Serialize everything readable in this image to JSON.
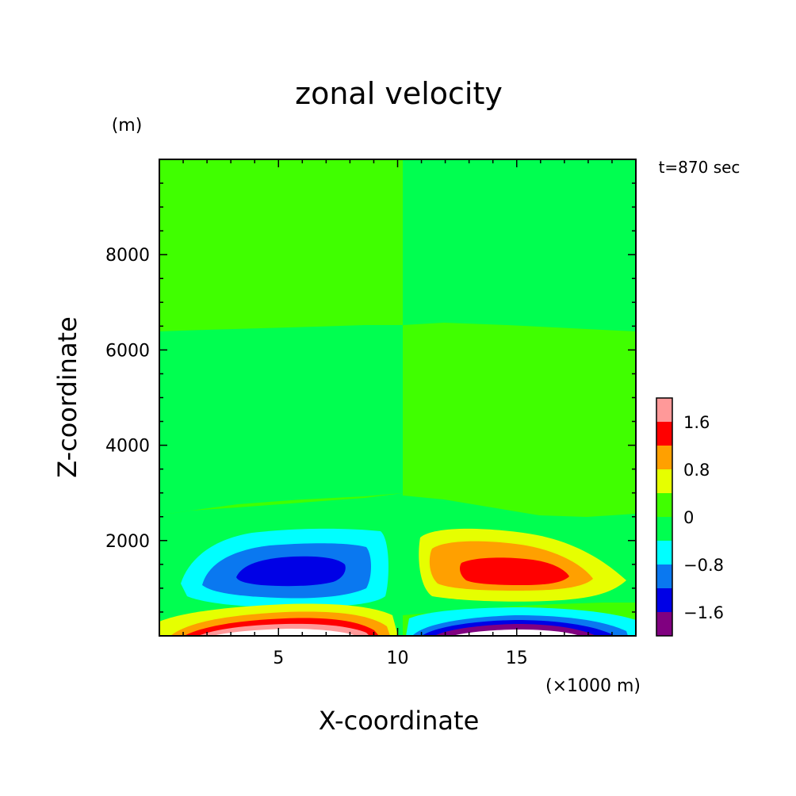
{
  "chart_data": {
    "type": "heatmap",
    "subtype": "filled contour",
    "title": "zonal velocity",
    "xlabel": "X-coordinate",
    "ylabel": "Z-coordinate",
    "x_unit": "(×1000 m)",
    "y_unit": "(m)",
    "annotation": "t=870 sec",
    "xlim": [
      0,
      20
    ],
    "ylim": [
      0,
      10000
    ],
    "xticks": [
      5,
      10,
      15
    ],
    "yticks": [
      2000,
      4000,
      6000,
      8000
    ],
    "xtick_labels": [
      "5",
      "10",
      "15"
    ],
    "ytick_labels": [
      "2000",
      "4000",
      "6000",
      "8000"
    ],
    "colorbar": {
      "levels": [
        -2.0,
        -1.6,
        -1.2,
        -0.8,
        -0.4,
        0,
        0.4,
        0.8,
        1.2,
        1.6,
        2.0
      ],
      "colors": [
        "#800080",
        "#0000e6",
        "#0a78f0",
        "#00ffff",
        "#00ff50",
        "#40ff00",
        "#e6ff00",
        "#ffa000",
        "#ff0000",
        "#ff9999"
      ],
      "tick_labels": [
        "-1.6",
        "-0.8",
        "0",
        "0.8",
        "1.6"
      ]
    },
    "features": [
      {
        "name": "upper negative cell",
        "x_center": 6.0,
        "z_center": 1400,
        "min_value": -1.4
      },
      {
        "name": "upper positive cell",
        "x_center": 14.5,
        "z_center": 1400,
        "min_value": 1.4
      },
      {
        "name": "surface positive jet",
        "x_range": [
          1,
          9.5
        ],
        "z_top": 400,
        "max_value": 2.0
      },
      {
        "name": "surface negative jet",
        "x_range": [
          10.5,
          19.5
        ],
        "z_top": 400,
        "min_value": -2.0
      }
    ]
  }
}
